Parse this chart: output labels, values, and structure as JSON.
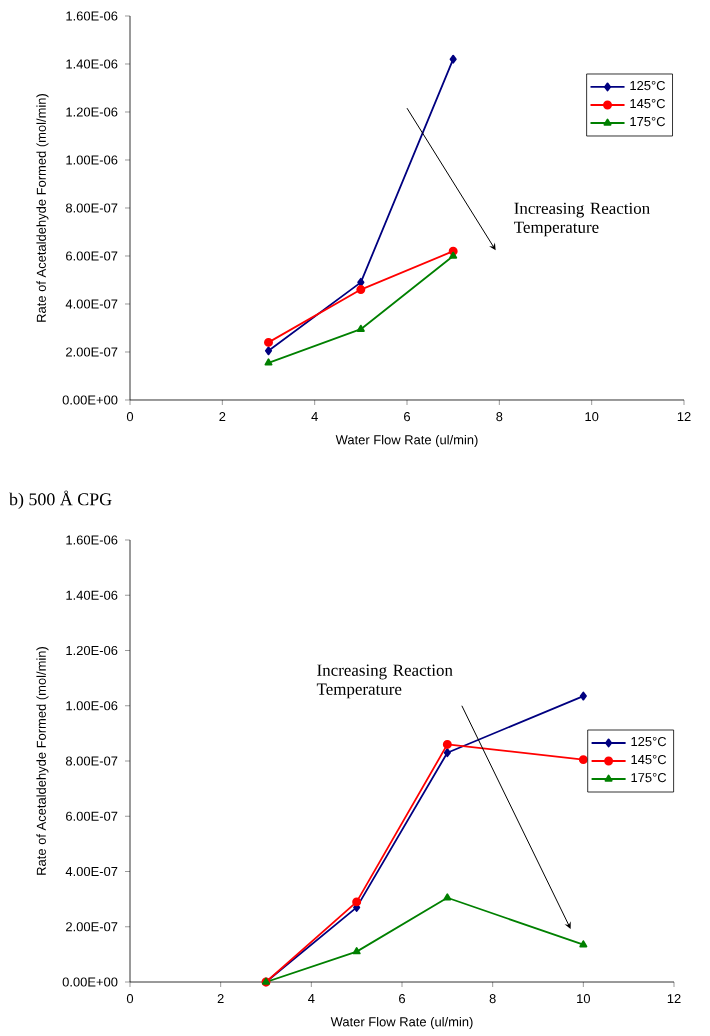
{
  "chart_data": [
    {
      "type": "line",
      "xlabel": "Water Flow Rate (ul/min)",
      "ylabel": "Rate of Acetaldehyde Formed (mol/min)",
      "x": [
        3,
        5,
        7
      ],
      "series": [
        {
          "name": "125°C",
          "color": "#000080",
          "marker": "diamond",
          "values": [
            2.05e-07,
            4.9e-07,
            1.42e-06
          ]
        },
        {
          "name": "145°C",
          "color": "#ff0000",
          "marker": "circle",
          "values": [
            2.4e-07,
            4.6e-07,
            6.2e-07
          ]
        },
        {
          "name": "175°C",
          "color": "#008000",
          "marker": "triangle",
          "values": [
            1.55e-07,
            2.95e-07,
            6e-07
          ]
        }
      ],
      "xlim": [
        0,
        12
      ],
      "xticks": [
        0,
        2,
        4,
        6,
        8,
        10,
        12
      ],
      "ylim": [
        0,
        1.6e-06
      ],
      "yticks": [
        {
          "value": 0,
          "label": "0.00E+00"
        },
        {
          "value": 2e-07,
          "label": "2.00E-07"
        },
        {
          "value": 4e-07,
          "label": "4.00E-07"
        },
        {
          "value": 6e-07,
          "label": "6.00E-07"
        },
        {
          "value": 8e-07,
          "label": "8.00E-07"
        },
        {
          "value": 1e-06,
          "label": "1.00E-06"
        },
        {
          "value": 1.2e-06,
          "label": "1.20E-06"
        },
        {
          "value": 1.4e-06,
          "label": "1.40E-06"
        },
        {
          "value": 1.6e-06,
          "label": "1.60E-06"
        }
      ],
      "annotations": [
        "Increasing Reaction Temperature"
      ],
      "legend": "top right",
      "grid": false
    },
    {
      "type": "line",
      "title": "b) 500 Å CPG",
      "xlabel": "Water Flow Rate (ul/min)",
      "ylabel": "Rate of Acetaldehyde Formed (mol/min)",
      "x": [
        3,
        5,
        7,
        10
      ],
      "series": [
        {
          "name": "125°C",
          "color": "#000080",
          "marker": "diamond",
          "values": [
            0,
            2.7e-07,
            8.3e-07,
            1.035e-06
          ]
        },
        {
          "name": "145°C",
          "color": "#ff0000",
          "marker": "circle",
          "values": [
            0,
            2.9e-07,
            8.6e-07,
            8.05e-07
          ]
        },
        {
          "name": "175°C",
          "color": "#008000",
          "marker": "triangle",
          "values": [
            0,
            1.1e-07,
            3.05e-07,
            1.35e-07
          ]
        }
      ],
      "xlim": [
        0,
        12
      ],
      "xticks": [
        0,
        2,
        4,
        6,
        8,
        10,
        12
      ],
      "ylim": [
        0,
        1.6e-06
      ],
      "yticks": [
        {
          "value": 0,
          "label": "0.00E+00"
        },
        {
          "value": 2e-07,
          "label": "2.00E-07"
        },
        {
          "value": 4e-07,
          "label": "4.00E-07"
        },
        {
          "value": 6e-07,
          "label": "6.00E-07"
        },
        {
          "value": 8e-07,
          "label": "8.00E-07"
        },
        {
          "value": 1e-06,
          "label": "1.00E-06"
        },
        {
          "value": 1.2e-06,
          "label": "1.20E-06"
        },
        {
          "value": 1.4e-06,
          "label": "1.40E-06"
        },
        {
          "value": 1.6e-06,
          "label": "1.60E-06"
        }
      ],
      "annotations": [
        "Increasing Reaction Temperature"
      ],
      "legend": "right",
      "grid": false
    }
  ]
}
